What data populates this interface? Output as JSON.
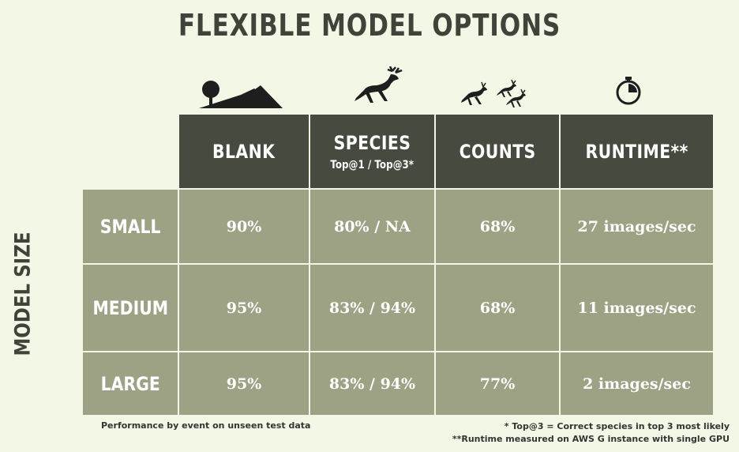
{
  "title": "FLEXIBLE MODEL OPTIONS",
  "side_label": "MODEL SIZE",
  "columns": [
    {
      "label": "BLANK",
      "sub": "",
      "icon": "tree-hill-icon"
    },
    {
      "label": "SPECIES",
      "sub": "Top@1 / Top@3*",
      "icon": "deer-icon"
    },
    {
      "label": "COUNTS",
      "sub": "",
      "icon": "deer-herd-icon"
    },
    {
      "label": "RUNTIME**",
      "sub": "",
      "icon": "stopwatch-icon"
    }
  ],
  "rows": [
    {
      "label": "SMALL",
      "values": [
        "90%",
        "80% / NA",
        "68%",
        "27 images/sec"
      ]
    },
    {
      "label": "MEDIUM",
      "values": [
        "95%",
        "83% / 94%",
        "68%",
        "11 images/sec"
      ]
    },
    {
      "label": "LARGE",
      "values": [
        "95%",
        "83% / 94%",
        "77%",
        "2 images/sec"
      ]
    }
  ],
  "footnote_left": "Performance by event on unseen test data",
  "footnote_right_1": "* Top@3 = Correct species in top 3 most likely",
  "footnote_right_2": "**Runtime measured on AWS G instance with single GPU",
  "colors": {
    "background": "#f3f8e6",
    "header": "#474a3e",
    "cell": "#9ea284",
    "title": "#3f433a"
  }
}
